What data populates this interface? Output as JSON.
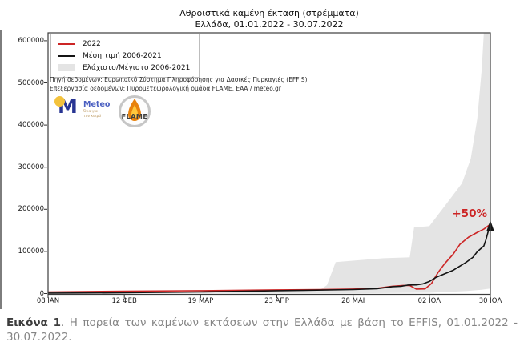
{
  "title": {
    "line1": "Αθροιστικά καμένη έκταση (στρέμματα)",
    "line2": "Ελλάδα, 01.01.2022 - 30.07.2022"
  },
  "legend": {
    "items": [
      {
        "label": "2022",
        "type": "line",
        "color": "#cc2525"
      },
      {
        "label": "Μέση τιμή 2006-2021",
        "type": "line",
        "color": "#141414"
      },
      {
        "label": "Ελάχιστο/Μέγιστο 2006-2021",
        "type": "patch",
        "color": "#e4e4e4"
      }
    ]
  },
  "source": {
    "line1": "Πηγή δεδομένων: Ευρωπαϊκό Σύστημα Πληροφόρησης για Δασικές Πυρκαγιές (EFFIS)",
    "line2": "Επεξεργασία δεδομένων: Πυρομετεωρολογική ομάδα FLAME, ΕΑΑ / meteo.gr"
  },
  "logos": {
    "meteo": {
      "m_glyph": "M",
      "name": "Meteo",
      "tagline1": "Όλα για",
      "tagline2": "τον καιρό"
    },
    "flame": {
      "name": "FLAME"
    }
  },
  "annotation": {
    "label": "+50%",
    "color": "#cc2525"
  },
  "caption": {
    "figure_label": "Εικόνα 1",
    "text": ". Η πορεία των καμένων εκτάσεων στην Ελλάδα με βάση το EFFIS, 01.01.2022 - 30.07.2022."
  },
  "chart_data": {
    "type": "line",
    "title": "Αθροιστικά καμένη έκταση (στρέμματα)",
    "subtitle": "Ελλάδα, 01.01.2022 - 30.07.2022",
    "xlabel": "",
    "ylabel": "",
    "grid": false,
    "legend_position": "upper-left",
    "x_axis": {
      "unit": "day of year 2022",
      "range": [
        8,
        211
      ],
      "tick_days": [
        8,
        43,
        78,
        113,
        148,
        183,
        211
      ],
      "tick_labels": [
        "08 ΙΑΝ",
        "12 ΦΕΒ",
        "19 ΜΑΡ",
        "23 ΑΠΡ",
        "28 ΜΑΙ",
        "02 ΙΟΛ",
        "30 ΙΟΛ"
      ]
    },
    "y_axis": {
      "range": [
        0,
        618000
      ],
      "tick_values": [
        0,
        100000,
        200000,
        300000,
        400000,
        500000,
        600000
      ],
      "tick_labels": [
        "0",
        "100000",
        "200000",
        "300000",
        "400000",
        "500000",
        "600000"
      ]
    },
    "band": {
      "name": "Ελάχιστο/Μέγιστο 2006-2021",
      "color": "#e4e4e4",
      "upper": [
        [
          8,
          1900
        ],
        [
          78,
          4800
        ],
        [
          113,
          7600
        ],
        [
          133,
          9500
        ],
        [
          136,
          20000
        ],
        [
          140,
          74600
        ],
        [
          162,
          84000
        ],
        [
          174,
          86000
        ],
        [
          176,
          157000
        ],
        [
          183,
          160000
        ],
        [
          191,
          214000
        ],
        [
          198,
          262000
        ],
        [
          202,
          320000
        ],
        [
          205,
          415000
        ],
        [
          207,
          530000
        ],
        [
          208,
          618000
        ],
        [
          211,
          618000
        ]
      ],
      "lower": [
        [
          8,
          300
        ],
        [
          150,
          800
        ],
        [
          183,
          2000
        ],
        [
          200,
          6000
        ],
        [
          207,
          9000
        ],
        [
          211,
          12000
        ]
      ]
    },
    "series": [
      {
        "name": "2022",
        "color": "#cc2525",
        "points": [
          [
            8,
            3800
          ],
          [
            43,
            5700
          ],
          [
            78,
            6700
          ],
          [
            113,
            8600
          ],
          [
            133,
            9500
          ],
          [
            148,
            10500
          ],
          [
            159,
            12400
          ],
          [
            166,
            17200
          ],
          [
            171,
            19100
          ],
          [
            174,
            19100
          ],
          [
            177,
            10500
          ],
          [
            181,
            11000
          ],
          [
            184,
            24000
          ],
          [
            187,
            50000
          ],
          [
            190,
            70700
          ],
          [
            194,
            93700
          ],
          [
            197,
            116600
          ],
          [
            201,
            133800
          ],
          [
            205,
            145200
          ],
          [
            208,
            152900
          ],
          [
            211,
            164400
          ]
        ]
      },
      {
        "name": "Μέση τιμή 2006-2021",
        "color": "#141414",
        "arrow_end": true,
        "points": [
          [
            8,
            1000
          ],
          [
            43,
            1900
          ],
          [
            78,
            3800
          ],
          [
            113,
            6700
          ],
          [
            148,
            9500
          ],
          [
            159,
            11500
          ],
          [
            166,
            16200
          ],
          [
            170,
            17200
          ],
          [
            173,
            20000
          ],
          [
            177,
            20500
          ],
          [
            180,
            22900
          ],
          [
            183,
            28700
          ],
          [
            186,
            38200
          ],
          [
            190,
            46800
          ],
          [
            194,
            55400
          ],
          [
            197,
            65000
          ],
          [
            200,
            74600
          ],
          [
            203,
            86000
          ],
          [
            205,
            99400
          ],
          [
            208,
            112800
          ],
          [
            209,
            128100
          ],
          [
            210,
            147200
          ],
          [
            211,
            168200
          ]
        ]
      }
    ],
    "annotations": [
      {
        "text": "+50%",
        "x_day": 207,
        "y_value": 180000,
        "color": "#cc2525"
      }
    ]
  }
}
